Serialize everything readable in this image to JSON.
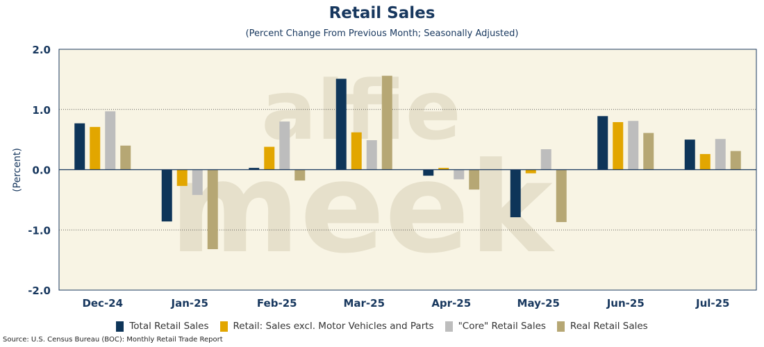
{
  "chart_data": {
    "type": "bar",
    "title": "Retail Sales",
    "subtitle": "(Percent Change From Previous Month; Seasonally Adjusted)",
    "ylabel": "(Percent)",
    "xlabel": "",
    "ylim": [
      -2.0,
      2.0
    ],
    "yticks": [
      2.0,
      1.0,
      0.0,
      -1.0,
      -2.0
    ],
    "ytick_labels": [
      "2.0",
      "1.0",
      "0.0",
      "-1.0",
      "-2.0"
    ],
    "watermark": [
      "alfie",
      "meek"
    ],
    "categories": [
      "Dec-24",
      "Jan-25",
      "Feb-25",
      "Mar-25",
      "Apr-25",
      "May-25",
      "Jun-25",
      "Jul-25"
    ],
    "series": [
      {
        "name": "Total Retail Sales",
        "color": "#0e3559",
        "values": [
          0.77,
          -0.86,
          0.03,
          1.51,
          -0.1,
          -0.79,
          0.89,
          0.5
        ]
      },
      {
        "name": "Retail: Sales excl. Motor Vehicles and Parts",
        "color": "#e2a600",
        "values": [
          0.71,
          -0.27,
          0.38,
          0.62,
          0.03,
          -0.06,
          0.79,
          0.26
        ]
      },
      {
        "name": "\"Core\" Retail Sales",
        "color": "#bdbdbd",
        "values": [
          0.97,
          -0.42,
          0.8,
          0.49,
          -0.16,
          0.34,
          0.81,
          0.51
        ]
      },
      {
        "name": "Real Retail Sales",
        "color": "#b6a774",
        "values": [
          0.4,
          -1.32,
          -0.18,
          1.56,
          -0.33,
          -0.87,
          0.61,
          0.31
        ]
      }
    ],
    "legend_position": "bottom",
    "grid": "dotted horizontal",
    "source": "Source: U.S. Census Bureau (BOC): Monthly Retail Trade Report"
  },
  "colors": {
    "plot_background": "#f8f4e4",
    "axis_text": "#17375e",
    "watermark": "#e6e0cb"
  }
}
